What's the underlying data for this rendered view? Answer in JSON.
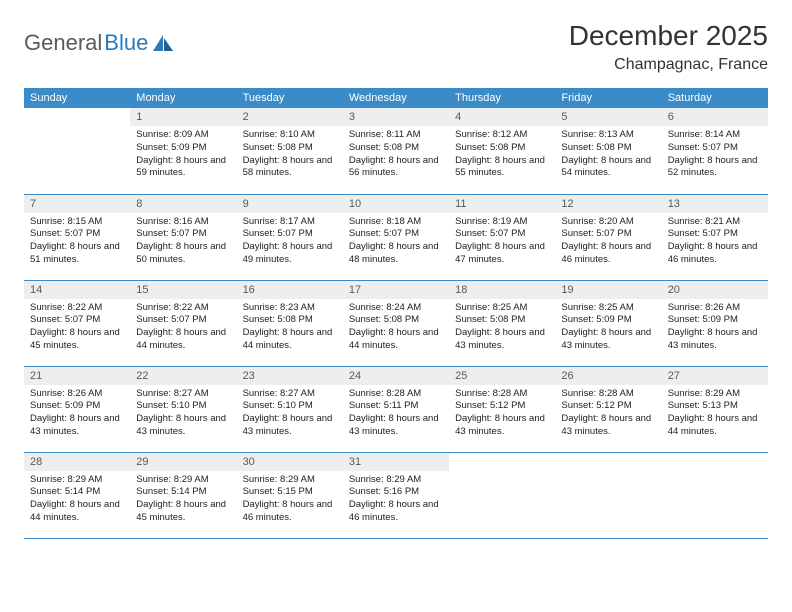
{
  "colors": {
    "header_bg": "#3b8bc8",
    "header_text": "#ffffff",
    "daynum_bg": "#eceeef",
    "daynum_text": "#5a5a5a",
    "border": "#3b8bc8",
    "body_text": "#222222",
    "title_text": "#333333",
    "logo_gray": "#5a5a5a",
    "logo_blue": "#2a7ab9"
  },
  "logo": {
    "part1": "General",
    "part2": "Blue"
  },
  "title": {
    "month": "December 2025",
    "location": "Champagnac, France"
  },
  "weekdays": [
    "Sunday",
    "Monday",
    "Tuesday",
    "Wednesday",
    "Thursday",
    "Friday",
    "Saturday"
  ],
  "days": [
    {
      "n": "",
      "sr": "",
      "ss": "",
      "dl": ""
    },
    {
      "n": "1",
      "sr": "8:09 AM",
      "ss": "5:09 PM",
      "dl": "8 hours and 59 minutes."
    },
    {
      "n": "2",
      "sr": "8:10 AM",
      "ss": "5:08 PM",
      "dl": "8 hours and 58 minutes."
    },
    {
      "n": "3",
      "sr": "8:11 AM",
      "ss": "5:08 PM",
      "dl": "8 hours and 56 minutes."
    },
    {
      "n": "4",
      "sr": "8:12 AM",
      "ss": "5:08 PM",
      "dl": "8 hours and 55 minutes."
    },
    {
      "n": "5",
      "sr": "8:13 AM",
      "ss": "5:08 PM",
      "dl": "8 hours and 54 minutes."
    },
    {
      "n": "6",
      "sr": "8:14 AM",
      "ss": "5:07 PM",
      "dl": "8 hours and 52 minutes."
    },
    {
      "n": "7",
      "sr": "8:15 AM",
      "ss": "5:07 PM",
      "dl": "8 hours and 51 minutes."
    },
    {
      "n": "8",
      "sr": "8:16 AM",
      "ss": "5:07 PM",
      "dl": "8 hours and 50 minutes."
    },
    {
      "n": "9",
      "sr": "8:17 AM",
      "ss": "5:07 PM",
      "dl": "8 hours and 49 minutes."
    },
    {
      "n": "10",
      "sr": "8:18 AM",
      "ss": "5:07 PM",
      "dl": "8 hours and 48 minutes."
    },
    {
      "n": "11",
      "sr": "8:19 AM",
      "ss": "5:07 PM",
      "dl": "8 hours and 47 minutes."
    },
    {
      "n": "12",
      "sr": "8:20 AM",
      "ss": "5:07 PM",
      "dl": "8 hours and 46 minutes."
    },
    {
      "n": "13",
      "sr": "8:21 AM",
      "ss": "5:07 PM",
      "dl": "8 hours and 46 minutes."
    },
    {
      "n": "14",
      "sr": "8:22 AM",
      "ss": "5:07 PM",
      "dl": "8 hours and 45 minutes."
    },
    {
      "n": "15",
      "sr": "8:22 AM",
      "ss": "5:07 PM",
      "dl": "8 hours and 44 minutes."
    },
    {
      "n": "16",
      "sr": "8:23 AM",
      "ss": "5:08 PM",
      "dl": "8 hours and 44 minutes."
    },
    {
      "n": "17",
      "sr": "8:24 AM",
      "ss": "5:08 PM",
      "dl": "8 hours and 44 minutes."
    },
    {
      "n": "18",
      "sr": "8:25 AM",
      "ss": "5:08 PM",
      "dl": "8 hours and 43 minutes."
    },
    {
      "n": "19",
      "sr": "8:25 AM",
      "ss": "5:09 PM",
      "dl": "8 hours and 43 minutes."
    },
    {
      "n": "20",
      "sr": "8:26 AM",
      "ss": "5:09 PM",
      "dl": "8 hours and 43 minutes."
    },
    {
      "n": "21",
      "sr": "8:26 AM",
      "ss": "5:09 PM",
      "dl": "8 hours and 43 minutes."
    },
    {
      "n": "22",
      "sr": "8:27 AM",
      "ss": "5:10 PM",
      "dl": "8 hours and 43 minutes."
    },
    {
      "n": "23",
      "sr": "8:27 AM",
      "ss": "5:10 PM",
      "dl": "8 hours and 43 minutes."
    },
    {
      "n": "24",
      "sr": "8:28 AM",
      "ss": "5:11 PM",
      "dl": "8 hours and 43 minutes."
    },
    {
      "n": "25",
      "sr": "8:28 AM",
      "ss": "5:12 PM",
      "dl": "8 hours and 43 minutes."
    },
    {
      "n": "26",
      "sr": "8:28 AM",
      "ss": "5:12 PM",
      "dl": "8 hours and 43 minutes."
    },
    {
      "n": "27",
      "sr": "8:29 AM",
      "ss": "5:13 PM",
      "dl": "8 hours and 44 minutes."
    },
    {
      "n": "28",
      "sr": "8:29 AM",
      "ss": "5:14 PM",
      "dl": "8 hours and 44 minutes."
    },
    {
      "n": "29",
      "sr": "8:29 AM",
      "ss": "5:14 PM",
      "dl": "8 hours and 45 minutes."
    },
    {
      "n": "30",
      "sr": "8:29 AM",
      "ss": "5:15 PM",
      "dl": "8 hours and 46 minutes."
    },
    {
      "n": "31",
      "sr": "8:29 AM",
      "ss": "5:16 PM",
      "dl": "8 hours and 46 minutes."
    },
    {
      "n": "",
      "sr": "",
      "ss": "",
      "dl": ""
    },
    {
      "n": "",
      "sr": "",
      "ss": "",
      "dl": ""
    },
    {
      "n": "",
      "sr": "",
      "ss": "",
      "dl": ""
    }
  ],
  "labels": {
    "sunrise": "Sunrise:",
    "sunset": "Sunset:",
    "daylight": "Daylight:"
  }
}
